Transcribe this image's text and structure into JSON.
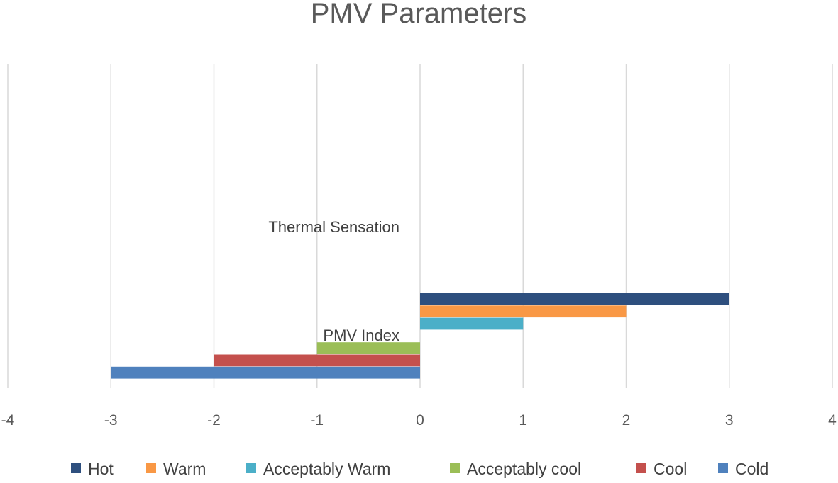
{
  "chart_data": {
    "type": "bar",
    "orientation": "horizontal",
    "title": "PMV Parameters",
    "xlabel": "",
    "ylabel": "",
    "xlim": [
      -4,
      4
    ],
    "xticks": [
      "-4",
      "-3",
      "-2",
      "-1",
      "0",
      "1",
      "2",
      "3",
      "4"
    ],
    "grid": true,
    "legend_position": "bottom",
    "categories": [
      "PMV Index",
      "Thermal Sensation"
    ],
    "series": [
      {
        "name": "Hot",
        "color": "#2E4F7E",
        "values": [
          3,
          null
        ]
      },
      {
        "name": "Warm",
        "color": "#F99845",
        "values": [
          2,
          null
        ]
      },
      {
        "name": "Acceptably Warm",
        "color": "#4BAFC8",
        "values": [
          1,
          null
        ]
      },
      {
        "name": "Acceptably cool",
        "color": "#9BBE57",
        "values": [
          -1,
          null
        ]
      },
      {
        "name": "Cool",
        "color": "#C4504D",
        "values": [
          -2,
          null
        ]
      },
      {
        "name": "Cold",
        "color": "#4F81BD",
        "values": [
          -3,
          null
        ]
      }
    ]
  }
}
